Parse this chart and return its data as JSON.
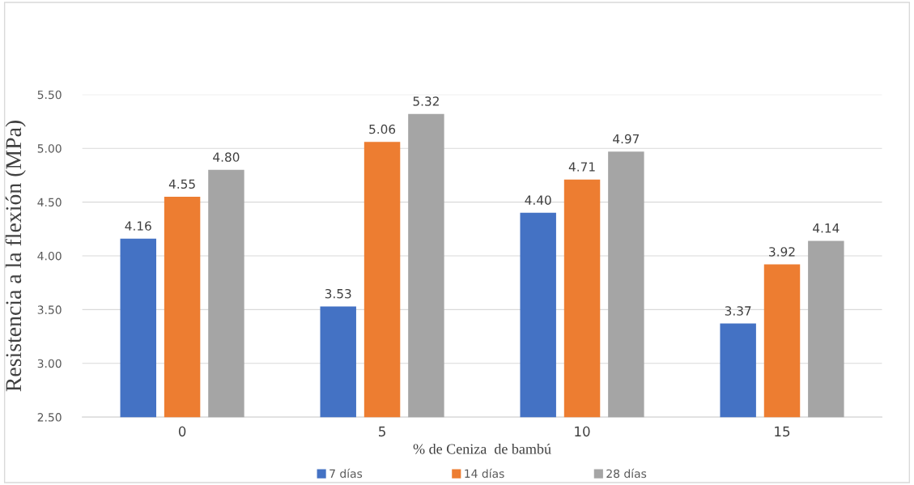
{
  "chart_data": {
    "type": "bar",
    "xlabel": "% de Ceniza  de bambú",
    "ylabel": "Resistencia a la flexión (MPa)",
    "categories": [
      "0",
      "5",
      "10",
      "15"
    ],
    "series": [
      {
        "name": "7 días",
        "color": "#4472c4",
        "values": [
          4.16,
          3.53,
          4.4,
          3.37
        ],
        "value_labels": [
          "4.16",
          "3.53",
          "4.40",
          "3.37"
        ]
      },
      {
        "name": "14 días",
        "color": "#ed7d31",
        "values": [
          4.55,
          5.06,
          4.71,
          3.92
        ],
        "value_labels": [
          "4.55",
          "5.06",
          "4.71",
          "3.92"
        ]
      },
      {
        "name": "28 días",
        "color": "#a5a5a5",
        "values": [
          4.8,
          5.32,
          4.97,
          4.14
        ],
        "value_labels": [
          "4.80",
          "5.32",
          "4.97",
          "4.14"
        ]
      }
    ],
    "ylim": [
      2.5,
      5.5
    ],
    "yticks": [
      {
        "value": 2.5,
        "label": "2.50"
      },
      {
        "value": 3.0,
        "label": "3.00"
      },
      {
        "value": 3.5,
        "label": "3.50"
      },
      {
        "value": 4.0,
        "label": "4.00"
      },
      {
        "value": 4.5,
        "label": "4.50"
      },
      {
        "value": 5.0,
        "label": "5.00"
      },
      {
        "value": 5.5,
        "label": "5.50"
      }
    ],
    "grid": "y",
    "legend": "bottom"
  }
}
